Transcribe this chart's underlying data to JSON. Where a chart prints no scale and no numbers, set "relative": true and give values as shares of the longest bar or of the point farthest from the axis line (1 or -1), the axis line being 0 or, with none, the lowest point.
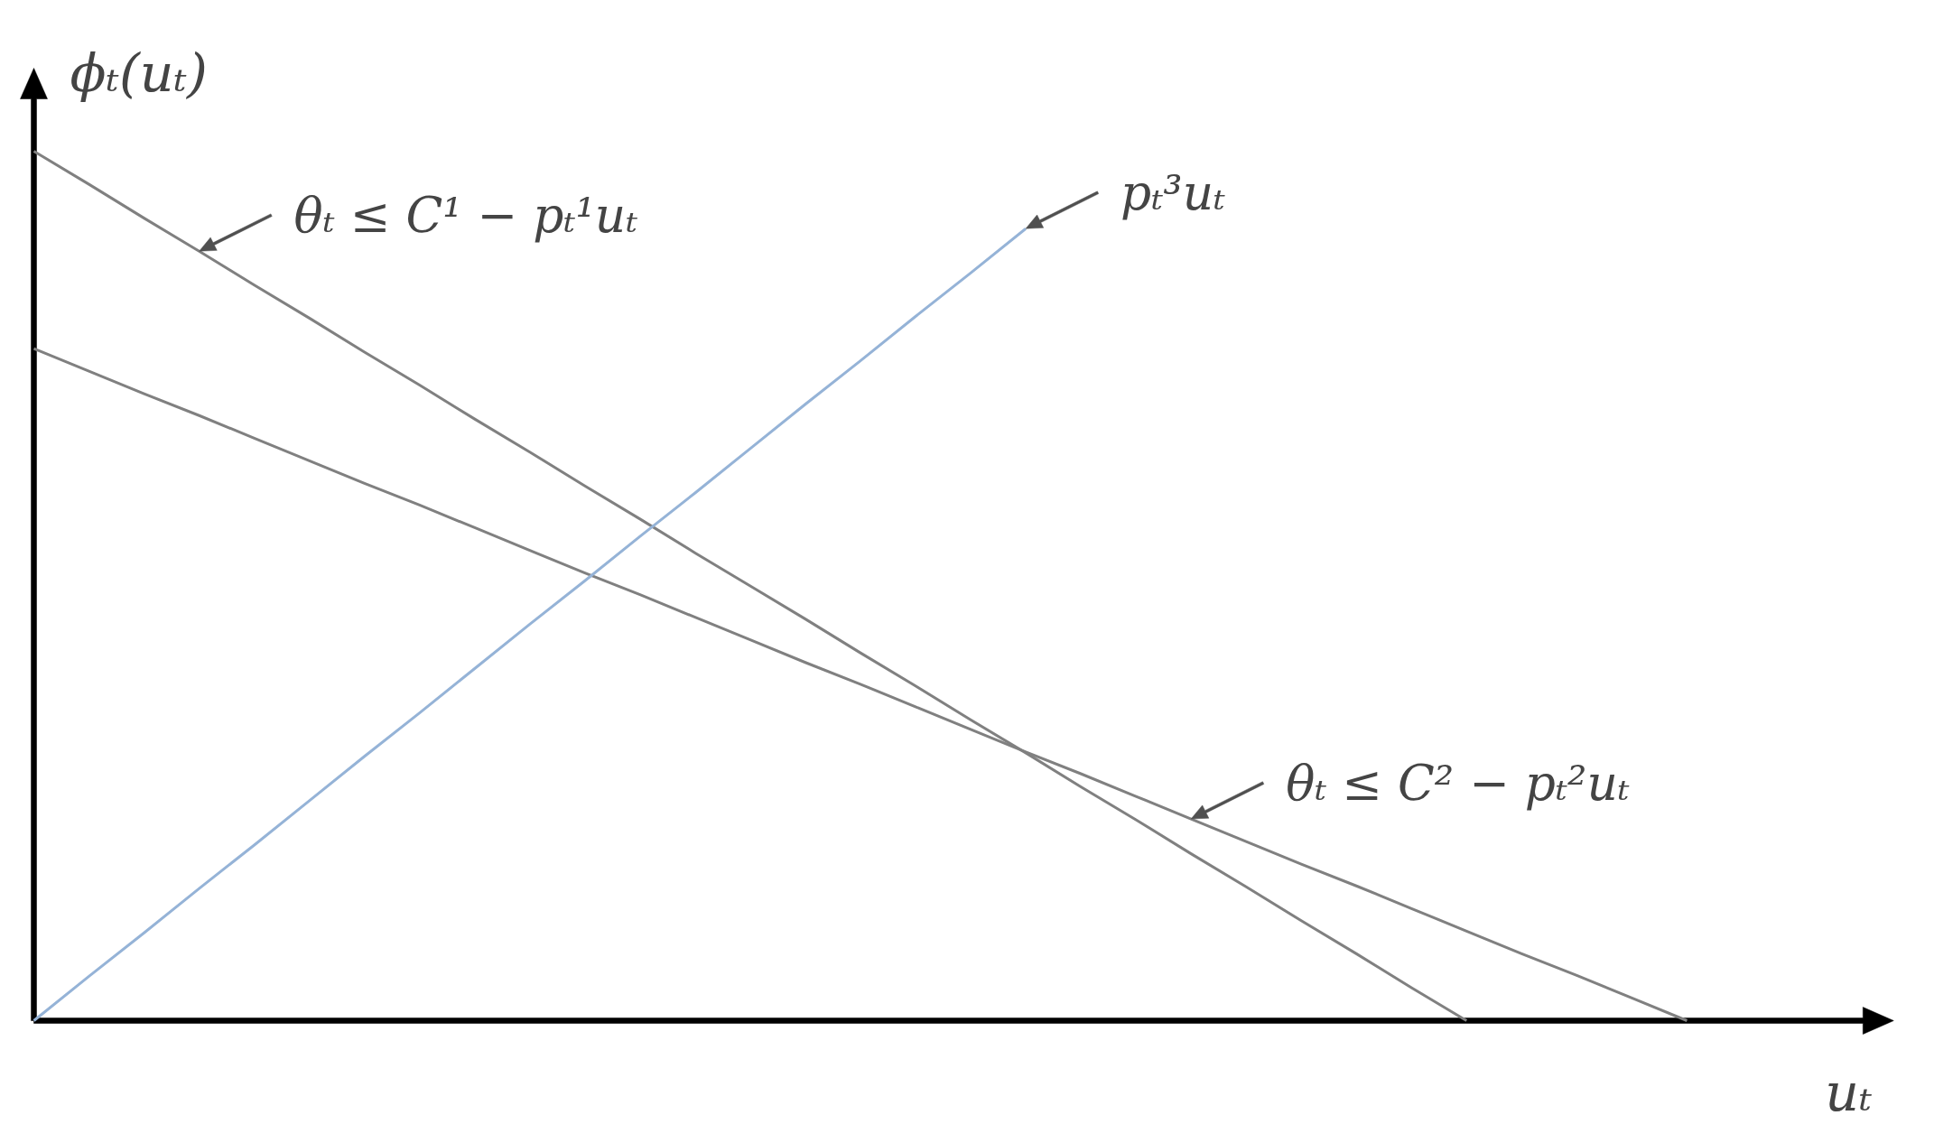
{
  "chart_data": {
    "type": "line",
    "relative": true,
    "ylabel": "ϕₜ(uₜ)",
    "xlabel": "uₜ",
    "line_style": "solid",
    "categories": [
      null,
      null,
      null,
      null,
      null,
      null,
      null,
      null,
      null,
      null,
      null,
      null,
      null,
      null,
      null,
      null,
      null,
      null,
      null,
      null,
      null,
      null,
      null,
      null,
      null,
      null,
      null,
      null,
      null,
      null,
      null,
      null,
      null
    ],
    "series": [
      {
        "color": "#808080",
        "values": [
          1.0,
          0.962,
          0.923,
          0.885,
          0.846,
          0.808,
          0.769,
          0.731,
          0.692,
          0.654,
          0.615,
          0.577,
          0.538,
          0.5,
          0.462,
          0.423,
          0.385,
          0.346,
          0.308,
          0.269,
          0.231,
          0.192,
          0.154,
          0.115,
          0.077,
          0.038,
          0,
          null,
          null,
          null,
          null,
          null,
          null
        ]
      },
      {
        "color": "#808080",
        "values": [
          0.773,
          0.747,
          0.721,
          0.696,
          0.67,
          0.644,
          0.618,
          0.593,
          0.567,
          0.541,
          0.515,
          0.49,
          0.464,
          0.438,
          0.412,
          0.387,
          0.361,
          0.335,
          0.309,
          0.284,
          0.258,
          0.232,
          0.206,
          0.18,
          0.155,
          0.129,
          0.103,
          0.077,
          0.052,
          0.026,
          0,
          null,
          null
        ]
      },
      {
        "color": "#95b3d7",
        "values": [
          0,
          0.051,
          0.101,
          0.152,
          0.202,
          0.253,
          0.304,
          0.354,
          0.405,
          0.456,
          0.506,
          0.557,
          0.607,
          0.658,
          0.709,
          0.759,
          0.81,
          0.86,
          0.911,
          null,
          null,
          null,
          null,
          null,
          null,
          null,
          null,
          null,
          null,
          null,
          null,
          null,
          null
        ]
      }
    ],
    "annotations": [
      "θₜ ≤ C¹ − pₜ¹uₜ",
      "pₜ³uₜ",
      "θₜ ≤ C² − pₜ²uₜ"
    ]
  }
}
